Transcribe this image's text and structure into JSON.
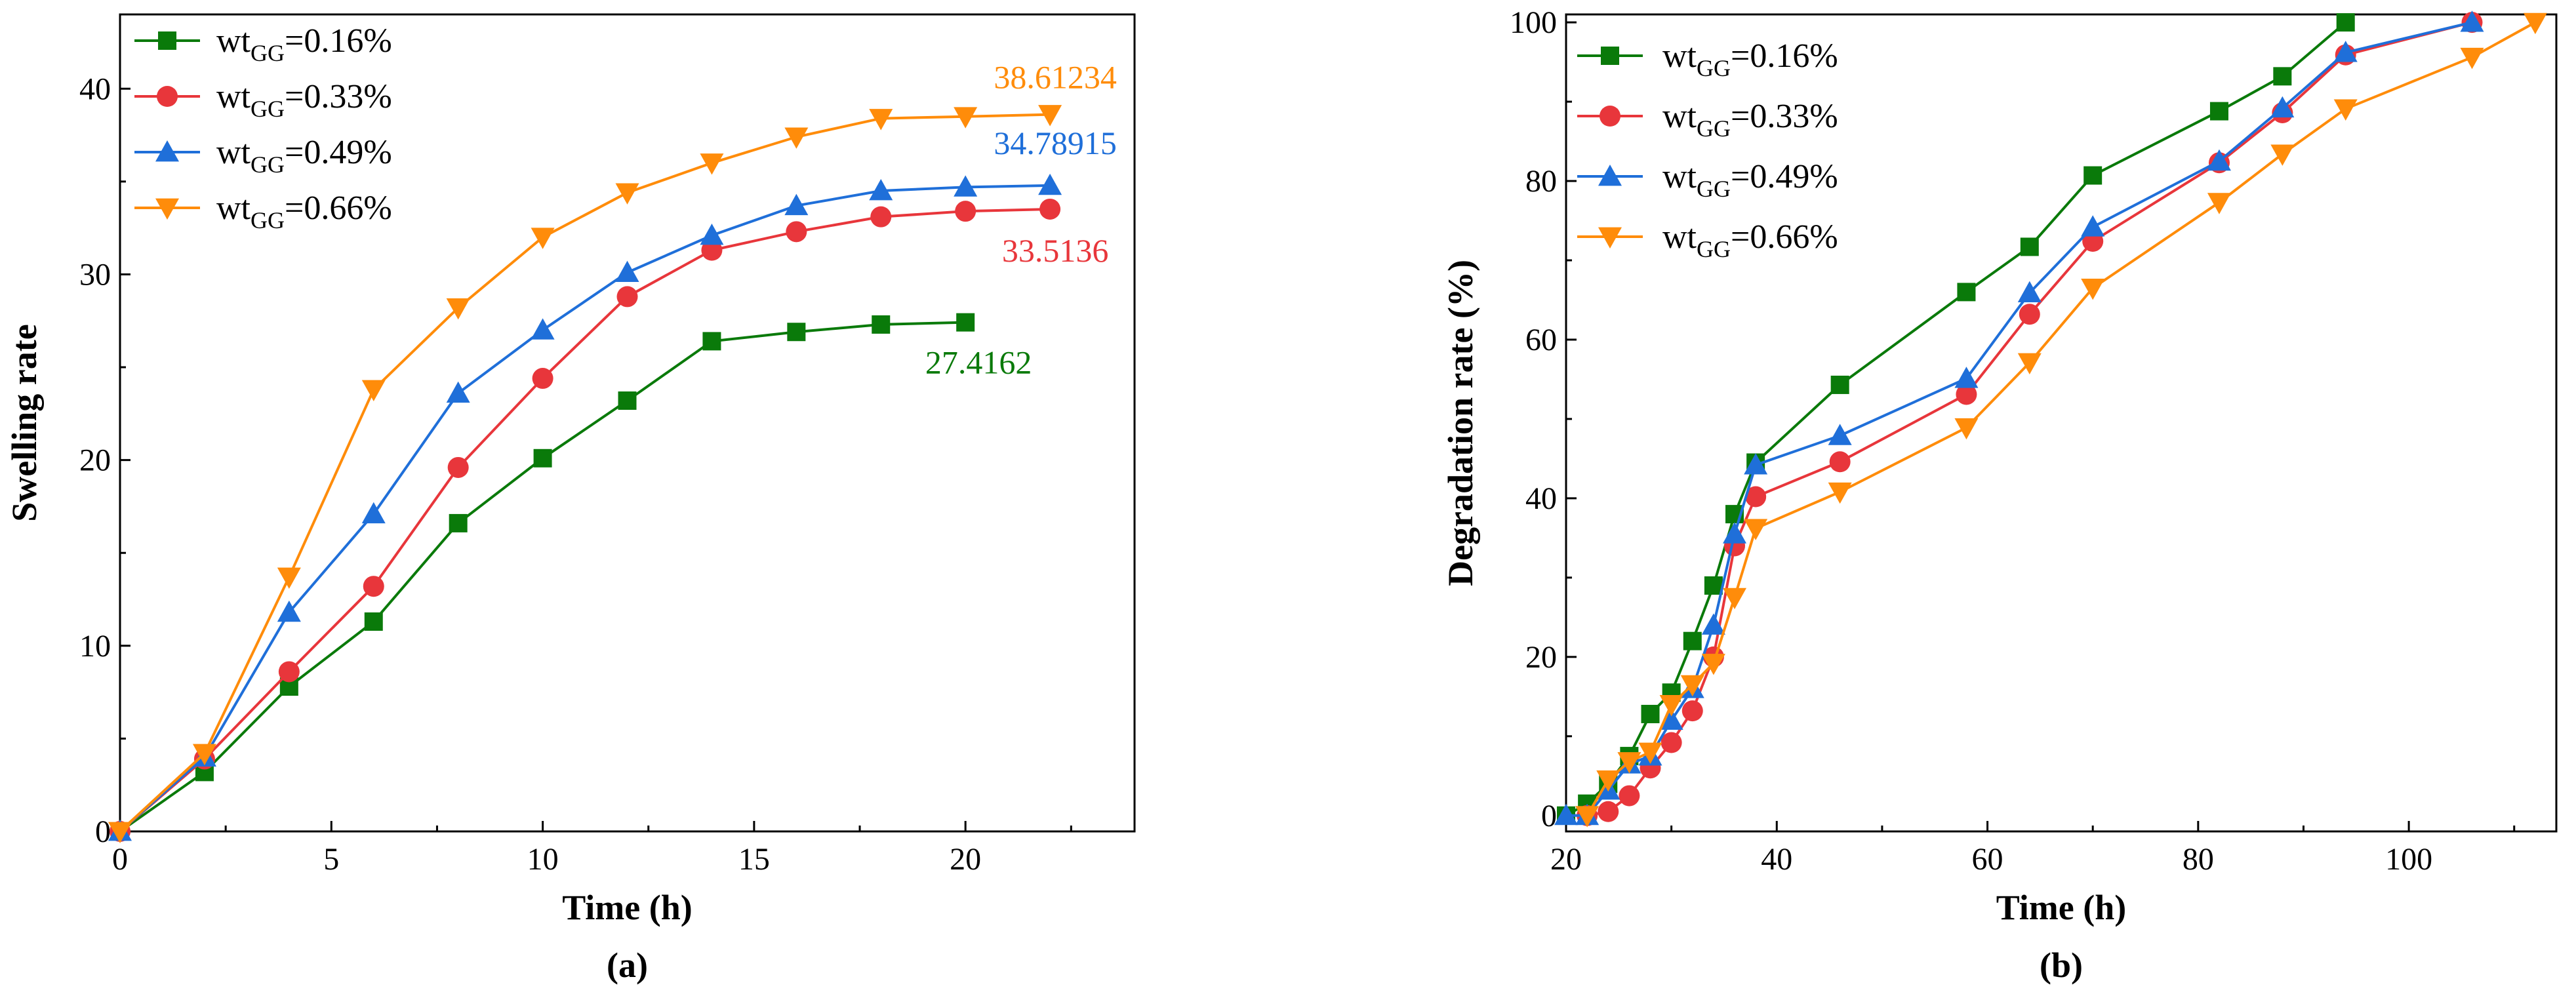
{
  "chart_data": [
    {
      "type": "line",
      "panel_label": "(a)",
      "xlabel": "Time (h)",
      "ylabel": "Swelling rate",
      "xlim": [
        0,
        24
      ],
      "ylim": [
        0,
        44
      ],
      "xticks": [
        0,
        5,
        10,
        15,
        20
      ],
      "yticks": [
        0,
        10,
        20,
        30,
        40
      ],
      "legend_position": "top-left",
      "series": [
        {
          "name": "wtGG=0.16%",
          "legend_prefix": "wt",
          "legend_sub": "GG",
          "legend_suffix": "=0.16%",
          "color": "#0a7a0a",
          "marker": "square",
          "x": [
            0,
            2,
            4,
            6,
            8,
            10,
            12,
            14,
            16,
            18,
            20
          ],
          "y": [
            0,
            3.2,
            7.8,
            11.3,
            16.6,
            20.1,
            23.2,
            26.4,
            26.9,
            27.3,
            27.4162
          ]
        },
        {
          "name": "wtGG=0.33%",
          "legend_prefix": "wt",
          "legend_sub": "GG",
          "legend_suffix": "=0.33%",
          "color": "#e8363b",
          "marker": "circle",
          "x": [
            0,
            2,
            4,
            6,
            8,
            10,
            12,
            14,
            16,
            18,
            20,
            22
          ],
          "y": [
            0,
            3.9,
            8.6,
            13.2,
            19.6,
            24.4,
            28.8,
            31.3,
            32.3,
            33.1,
            33.4,
            33.5136
          ]
        },
        {
          "name": "wtGG=0.49%",
          "legend_prefix": "wt",
          "legend_sub": "GG",
          "legend_suffix": "=0.49%",
          "color": "#1f6fd9",
          "marker": "triangle-up",
          "x": [
            0,
            2,
            4,
            6,
            8,
            10,
            12,
            14,
            16,
            18,
            20,
            22
          ],
          "y": [
            0,
            4.0,
            11.8,
            17.1,
            23.6,
            27.0,
            30.1,
            32.1,
            33.7,
            34.5,
            34.7,
            34.78915
          ]
        },
        {
          "name": "wtGG=0.66%",
          "legend_prefix": "wt",
          "legend_sub": "GG",
          "legend_suffix": "=0.66%",
          "color": "#ff8c0a",
          "marker": "triangle-down",
          "x": [
            0,
            2,
            4,
            6,
            8,
            10,
            12,
            14,
            16,
            18,
            20,
            22
          ],
          "y": [
            0,
            4.2,
            13.7,
            23.8,
            28.2,
            32.0,
            34.4,
            36.0,
            37.4,
            38.4,
            38.5,
            38.61234
          ]
        }
      ],
      "annotations": [
        {
          "text": "38.61234",
          "series": 3,
          "x": 22,
          "y": 38.61234
        },
        {
          "text": "34.78915",
          "series": 2,
          "x": 22,
          "y": 34.78915
        },
        {
          "text": "33.5136",
          "series": 1,
          "x": 22,
          "y": 33.5136
        },
        {
          "text": "27.4162",
          "series": 0,
          "x": 20,
          "y": 27.4162
        }
      ]
    },
    {
      "type": "line",
      "panel_label": "(b)",
      "xlabel": "Time (h)",
      "ylabel": "Degradation rate (%)",
      "xlim": [
        20,
        114
      ],
      "ylim": [
        -2,
        101
      ],
      "xticks": [
        20,
        40,
        60,
        80,
        100
      ],
      "yticks": [
        0,
        20,
        40,
        60,
        80,
        100
      ],
      "legend_position": "top-left",
      "series": [
        {
          "name": "wtGG=0.16%",
          "legend_prefix": "wt",
          "legend_sub": "GG",
          "legend_suffix": "=0.16%",
          "color": "#0a7a0a",
          "marker": "square",
          "x": [
            20,
            22,
            24,
            26,
            28,
            30,
            32,
            34,
            36,
            38,
            46,
            58,
            64,
            70,
            82,
            88,
            94
          ],
          "y": [
            0,
            1.5,
            4,
            7.5,
            12.8,
            15.5,
            22,
            29,
            38,
            44.5,
            54.3,
            66,
            71.7,
            80.7,
            88.8,
            93.2,
            100
          ]
        },
        {
          "name": "wtGG=0.33%",
          "legend_prefix": "wt",
          "legend_sub": "GG",
          "legend_suffix": "=0.33%",
          "color": "#e8363b",
          "marker": "circle",
          "x": [
            22,
            24,
            26,
            28,
            30,
            32,
            34,
            36,
            38,
            46,
            58,
            64,
            70,
            82,
            88,
            94,
            106
          ],
          "y": [
            0,
            0.5,
            2.5,
            6,
            9.2,
            13.2,
            20,
            34,
            40.2,
            44.6,
            53.1,
            63.2,
            72.4,
            82.3,
            88.6,
            95.9,
            100
          ]
        },
        {
          "name": "wtGG=0.49%",
          "legend_prefix": "wt",
          "legend_sub": "GG",
          "legend_suffix": "=0.49%",
          "color": "#1f6fd9",
          "marker": "triangle-up",
          "x": [
            20,
            22,
            24,
            26,
            28,
            30,
            32,
            34,
            36,
            38,
            46,
            58,
            64,
            70,
            82,
            88,
            94,
            106
          ],
          "y": [
            0,
            0,
            3.2,
            6.5,
            7.5,
            12,
            16,
            24,
            35.5,
            44.2,
            47.9,
            55.1,
            65.9,
            74.2,
            82.5,
            89.2,
            96.2,
            100
          ]
        },
        {
          "name": "wtGG=0.66%",
          "legend_prefix": "wt",
          "legend_sub": "GG",
          "legend_suffix": "=0.66%",
          "color": "#ff8c0a",
          "marker": "triangle-down",
          "x": [
            22,
            24,
            26,
            28,
            30,
            32,
            34,
            36,
            38,
            46,
            58,
            64,
            70,
            82,
            88,
            94,
            106,
            112
          ],
          "y": [
            0,
            4.5,
            6.8,
            8,
            14,
            16.5,
            19.2,
            27.5,
            36.2,
            40.8,
            48.9,
            57.1,
            66.5,
            77.3,
            83.4,
            89.1,
            95.6,
            100
          ]
        }
      ],
      "annotations": []
    }
  ]
}
